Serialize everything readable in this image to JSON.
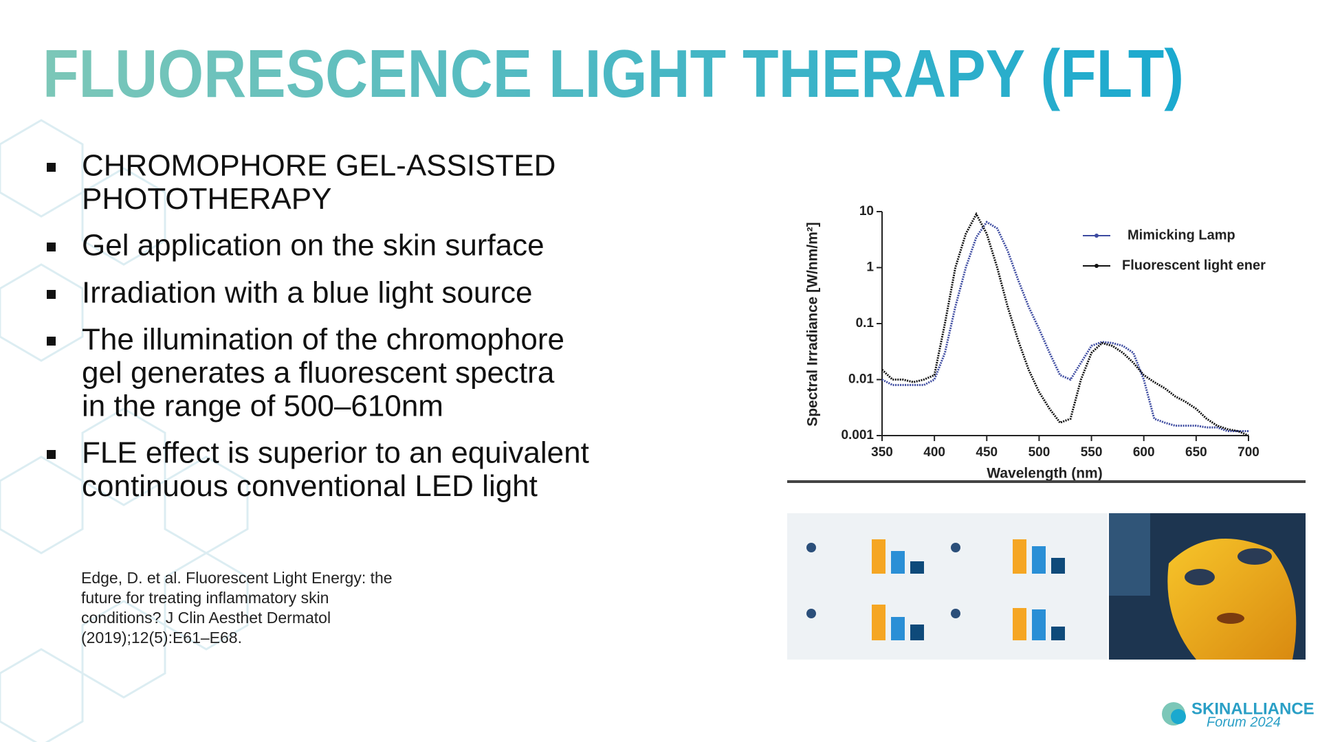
{
  "title": "FLUORESCENCE LIGHT THERAPY (FLT)",
  "bullets": [
    {
      "lines": [
        "CHROMOPHORE GEL-ASSISTED",
        "PHOTOTHERAPY"
      ]
    },
    {
      "lines": [
        "Gel application on the skin surface"
      ]
    },
    {
      "lines": [
        "Irradiation with a blue light source"
      ]
    },
    {
      "lines": [
        "The illumination of the chromophore",
        "gel generates a fluorescent spectra",
        "in the range of 500–610nm"
      ]
    },
    {
      "lines": [
        "FLE effect is superior to an equivalent",
        "continuous conventional LED light"
      ]
    }
  ],
  "citation": [
    "Edge, D. et al. Fluorescent Light Energy: the",
    "future for treating inflammatory skin",
    "conditions? J Clin Aesthet Dermatol",
    "(2019);12(5):E61–E68."
  ],
  "logo": {
    "name": "SKINALLIANCE",
    "event": "Forum 2024"
  },
  "chart_data": {
    "type": "line",
    "y_label": "Spectral Irradiance [W/nm/m²]",
    "x_label": "Wavelength (nm)",
    "y_log": true,
    "xlim": [
      350,
      700
    ],
    "xticks": [
      350,
      400,
      450,
      500,
      550,
      600,
      650,
      700
    ],
    "ylim": [
      0.001,
      10
    ],
    "yticks": [
      10,
      1,
      0.1,
      0.01,
      0.001
    ],
    "x": [
      350,
      360,
      370,
      380,
      390,
      400,
      410,
      420,
      430,
      440,
      450,
      460,
      470,
      480,
      490,
      500,
      510,
      520,
      530,
      540,
      550,
      560,
      570,
      580,
      590,
      600,
      610,
      620,
      630,
      640,
      650,
      660,
      670,
      680,
      690,
      700
    ],
    "series": [
      {
        "name": "Mimicking Lamp",
        "color": "#3c4aa0",
        "values": [
          0.01,
          0.008,
          0.008,
          0.008,
          0.008,
          0.01,
          0.03,
          0.2,
          1,
          3.5,
          6.5,
          5,
          2,
          0.6,
          0.2,
          0.08,
          0.03,
          0.012,
          0.01,
          0.02,
          0.04,
          0.047,
          0.045,
          0.04,
          0.03,
          0.01,
          0.002,
          0.0017,
          0.0015,
          0.0015,
          0.0015,
          0.0014,
          0.0014,
          0.0012,
          0.0012,
          0.0012
        ]
      },
      {
        "name": "Fluorescent light ener",
        "color": "#111111",
        "values": [
          0.015,
          0.01,
          0.01,
          0.009,
          0.01,
          0.012,
          0.1,
          1,
          4,
          9,
          4,
          1,
          0.2,
          0.05,
          0.015,
          0.006,
          0.003,
          0.0017,
          0.002,
          0.01,
          0.03,
          0.045,
          0.04,
          0.03,
          0.02,
          0.012,
          0.009,
          0.007,
          0.005,
          0.004,
          0.003,
          0.002,
          0.0015,
          0.0013,
          0.0012,
          0.001
        ]
      }
    ]
  }
}
